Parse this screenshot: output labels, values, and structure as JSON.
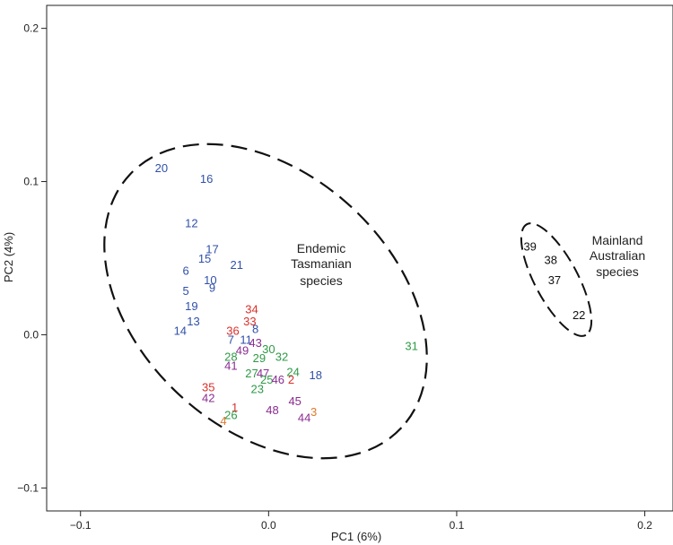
{
  "chart_data": {
    "type": "scatter",
    "xlabel": "PC1 (6%)",
    "ylabel": "PC2 (4%)",
    "xlim": [
      -0.118,
      0.215
    ],
    "ylim": [
      -0.115,
      0.215
    ],
    "xticks": [
      -0.1,
      0.0,
      0.1,
      0.2
    ],
    "xtick_labels": [
      "−0.1",
      "0.0",
      "0.1",
      "0.2"
    ],
    "yticks": [
      -0.1,
      0.0,
      0.1,
      0.2
    ],
    "ytick_labels": [
      "−0.1",
      "0.0",
      "0.1",
      "0.2"
    ],
    "grid": false,
    "colors": {
      "blue": "#3050a8",
      "red": "#d8302a",
      "green": "#2e9a45",
      "purple": "#8a2c90",
      "orange": "#e07a2a",
      "black": "#111111"
    },
    "points": [
      {
        "label": "20",
        "x": -0.057,
        "y": 0.109,
        "color": "blue"
      },
      {
        "label": "16",
        "x": -0.033,
        "y": 0.102,
        "color": "blue"
      },
      {
        "label": "12",
        "x": -0.041,
        "y": 0.073,
        "color": "blue"
      },
      {
        "label": "17",
        "x": -0.03,
        "y": 0.056,
        "color": "blue"
      },
      {
        "label": "15",
        "x": -0.034,
        "y": 0.05,
        "color": "blue"
      },
      {
        "label": "21",
        "x": -0.017,
        "y": 0.046,
        "color": "blue"
      },
      {
        "label": "6",
        "x": -0.044,
        "y": 0.042,
        "color": "blue"
      },
      {
        "label": "10",
        "x": -0.031,
        "y": 0.036,
        "color": "blue"
      },
      {
        "label": "9",
        "x": -0.03,
        "y": 0.031,
        "color": "blue"
      },
      {
        "label": "5",
        "x": -0.044,
        "y": 0.029,
        "color": "blue"
      },
      {
        "label": "19",
        "x": -0.041,
        "y": 0.019,
        "color": "blue"
      },
      {
        "label": "13",
        "x": -0.04,
        "y": 0.009,
        "color": "blue"
      },
      {
        "label": "14",
        "x": -0.047,
        "y": 0.003,
        "color": "blue"
      },
      {
        "label": "34",
        "x": -0.009,
        "y": 0.017,
        "color": "red"
      },
      {
        "label": "33",
        "x": -0.01,
        "y": 0.009,
        "color": "red"
      },
      {
        "label": "36",
        "x": -0.019,
        "y": 0.003,
        "color": "red"
      },
      {
        "label": "8",
        "x": -0.007,
        "y": 0.004,
        "color": "blue"
      },
      {
        "label": "7",
        "x": -0.02,
        "y": -0.003,
        "color": "blue"
      },
      {
        "label": "11",
        "x": -0.012,
        "y": -0.003,
        "color": "blue"
      },
      {
        "label": "43",
        "x": -0.007,
        "y": -0.005,
        "color": "purple"
      },
      {
        "label": "30",
        "x": 0.0,
        "y": -0.009,
        "color": "green"
      },
      {
        "label": "49",
        "x": -0.014,
        "y": -0.01,
        "color": "purple"
      },
      {
        "label": "28",
        "x": -0.02,
        "y": -0.014,
        "color": "green"
      },
      {
        "label": "29",
        "x": -0.005,
        "y": -0.015,
        "color": "green"
      },
      {
        "label": "32",
        "x": 0.007,
        "y": -0.014,
        "color": "green"
      },
      {
        "label": "41",
        "x": -0.02,
        "y": -0.02,
        "color": "purple"
      },
      {
        "label": "27",
        "x": -0.009,
        "y": -0.025,
        "color": "green"
      },
      {
        "label": "47",
        "x": -0.003,
        "y": -0.025,
        "color": "purple"
      },
      {
        "label": "24",
        "x": 0.013,
        "y": -0.024,
        "color": "green"
      },
      {
        "label": "18",
        "x": 0.025,
        "y": -0.026,
        "color": "blue"
      },
      {
        "label": "25",
        "x": -0.001,
        "y": -0.029,
        "color": "green"
      },
      {
        "label": "46",
        "x": 0.005,
        "y": -0.029,
        "color": "purple"
      },
      {
        "label": "2",
        "x": 0.012,
        "y": -0.029,
        "color": "red"
      },
      {
        "label": "23",
        "x": -0.006,
        "y": -0.035,
        "color": "green"
      },
      {
        "label": "35",
        "x": -0.032,
        "y": -0.034,
        "color": "red"
      },
      {
        "label": "42",
        "x": -0.032,
        "y": -0.041,
        "color": "purple"
      },
      {
        "label": "45",
        "x": 0.014,
        "y": -0.043,
        "color": "purple"
      },
      {
        "label": "1",
        "x": -0.018,
        "y": -0.047,
        "color": "red"
      },
      {
        "label": "48",
        "x": 0.002,
        "y": -0.049,
        "color": "purple"
      },
      {
        "label": "26",
        "x": -0.02,
        "y": -0.052,
        "color": "green"
      },
      {
        "label": "3",
        "x": 0.024,
        "y": -0.05,
        "color": "orange"
      },
      {
        "label": "44",
        "x": 0.019,
        "y": -0.054,
        "color": "purple"
      },
      {
        "label": "4",
        "x": -0.024,
        "y": -0.056,
        "color": "orange"
      },
      {
        "label": "31",
        "x": 0.076,
        "y": -0.007,
        "color": "green"
      },
      {
        "label": "39",
        "x": 0.139,
        "y": 0.058,
        "color": "black"
      },
      {
        "label": "38",
        "x": 0.15,
        "y": 0.049,
        "color": "black"
      },
      {
        "label": "37",
        "x": 0.152,
        "y": 0.036,
        "color": "black"
      },
      {
        "label": "22",
        "x": 0.165,
        "y": 0.013,
        "color": "black"
      }
    ],
    "annotations": [
      {
        "lines": [
          "Endemic",
          "Tasmanian",
          "species"
        ]
      },
      {
        "lines": [
          "Mainland",
          "Australian",
          "species"
        ]
      }
    ]
  }
}
